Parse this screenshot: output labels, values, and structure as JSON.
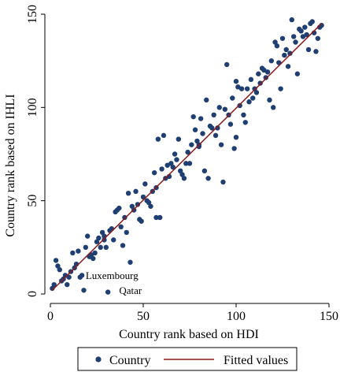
{
  "chart_data": {
    "type": "scatter",
    "xlabel": "Country rank based on HDI",
    "ylabel": "Country rank based on IHLI",
    "xlim": [
      0,
      150
    ],
    "ylim": [
      0,
      150
    ],
    "xticks": [
      0,
      50,
      100,
      150
    ],
    "yticks": [
      0,
      50,
      100,
      150
    ],
    "xtick_labels": [
      "0",
      "50",
      "100",
      "150"
    ],
    "ytick_labels": [
      "0",
      "50",
      "100",
      "150"
    ],
    "grid": false,
    "legend": {
      "placement": "bottom-center",
      "entries": [
        "Country",
        "Fitted values"
      ]
    },
    "colors": {
      "points": "#1f3f73",
      "fitted": "#8b1a1a"
    },
    "series": [
      {
        "name": "Country",
        "points": [
          [
            1,
            3
          ],
          [
            2,
            5
          ],
          [
            3,
            18
          ],
          [
            4,
            15
          ],
          [
            5,
            13
          ],
          [
            6,
            7
          ],
          [
            7,
            8
          ],
          [
            8,
            10
          ],
          [
            9,
            5
          ],
          [
            10,
            9
          ],
          [
            11,
            12
          ],
          [
            12,
            22
          ],
          [
            13,
            14
          ],
          [
            14,
            16
          ],
          [
            15,
            23
          ],
          [
            16,
            9
          ],
          [
            17,
            10
          ],
          [
            18,
            2
          ],
          [
            19,
            25
          ],
          [
            20,
            31
          ],
          [
            21,
            20
          ],
          [
            22,
            21
          ],
          [
            23,
            19
          ],
          [
            24,
            22
          ],
          [
            25,
            28
          ],
          [
            26,
            30
          ],
          [
            27,
            25
          ],
          [
            28,
            33
          ],
          [
            29,
            31
          ],
          [
            30,
            25
          ],
          [
            31,
            1
          ],
          [
            32,
            34
          ],
          [
            33,
            35
          ],
          [
            34,
            29
          ],
          [
            35,
            44
          ],
          [
            36,
            45
          ],
          [
            37,
            46
          ],
          [
            38,
            36
          ],
          [
            39,
            26
          ],
          [
            40,
            41
          ],
          [
            41,
            33
          ],
          [
            42,
            54
          ],
          [
            43,
            17
          ],
          [
            44,
            47
          ],
          [
            45,
            45
          ],
          [
            46,
            55
          ],
          [
            47,
            48
          ],
          [
            48,
            40
          ],
          [
            49,
            39
          ],
          [
            50,
            52
          ],
          [
            51,
            59
          ],
          [
            52,
            50
          ],
          [
            53,
            49
          ],
          [
            54,
            47
          ],
          [
            55,
            55
          ],
          [
            56,
            65
          ],
          [
            57,
            57
          ],
          [
            58,
            83
          ],
          [
            59,
            41
          ],
          [
            60,
            67
          ],
          [
            61,
            85
          ],
          [
            62,
            62
          ],
          [
            63,
            69
          ],
          [
            64,
            63
          ],
          [
            65,
            70
          ],
          [
            66,
            68
          ],
          [
            67,
            75
          ],
          [
            68,
            72
          ],
          [
            69,
            83
          ],
          [
            70,
            66
          ],
          [
            71,
            64
          ],
          [
            72,
            62
          ],
          [
            73,
            70
          ],
          [
            74,
            76
          ],
          [
            75,
            70
          ],
          [
            76,
            80
          ],
          [
            77,
            95
          ],
          [
            78,
            88
          ],
          [
            79,
            82
          ],
          [
            80,
            79
          ],
          [
            81,
            94
          ],
          [
            82,
            86
          ],
          [
            83,
            66
          ],
          [
            84,
            104
          ],
          [
            85,
            62
          ],
          [
            86,
            90
          ],
          [
            87,
            89
          ],
          [
            88,
            96
          ],
          [
            89,
            85
          ],
          [
            90,
            89
          ],
          [
            91,
            100
          ],
          [
            92,
            80
          ],
          [
            93,
            60
          ],
          [
            94,
            99
          ],
          [
            95,
            123
          ],
          [
            96,
            96
          ],
          [
            97,
            91
          ],
          [
            98,
            105
          ],
          [
            99,
            78
          ],
          [
            100,
            84
          ],
          [
            101,
            111
          ],
          [
            102,
            101
          ],
          [
            103,
            110
          ],
          [
            104,
            96
          ],
          [
            105,
            92
          ],
          [
            106,
            110
          ],
          [
            107,
            103
          ],
          [
            108,
            115
          ],
          [
            109,
            105
          ],
          [
            110,
            110
          ],
          [
            111,
            108
          ],
          [
            112,
            118
          ],
          [
            113,
            113
          ],
          [
            114,
            121
          ],
          [
            115,
            120
          ],
          [
            116,
            116
          ],
          [
            117,
            119
          ],
          [
            118,
            104
          ],
          [
            119,
            125
          ],
          [
            120,
            100
          ],
          [
            121,
            135
          ],
          [
            122,
            133
          ],
          [
            123,
            124
          ],
          [
            124,
            110
          ],
          [
            125,
            137
          ],
          [
            126,
            128
          ],
          [
            127,
            131
          ],
          [
            128,
            122
          ],
          [
            129,
            129
          ],
          [
            130,
            147
          ],
          [
            131,
            138
          ],
          [
            132,
            135
          ],
          [
            133,
            118
          ],
          [
            134,
            142
          ],
          [
            135,
            141
          ],
          [
            136,
            138
          ],
          [
            137,
            143
          ],
          [
            138,
            139
          ],
          [
            139,
            131
          ],
          [
            140,
            145
          ],
          [
            141,
            146
          ],
          [
            142,
            140
          ],
          [
            143,
            130
          ],
          [
            144,
            137
          ],
          [
            145,
            143
          ],
          [
            146,
            144
          ],
          [
            29,
            29
          ],
          [
            57,
            41
          ],
          [
            80,
            80
          ],
          [
            100,
            114
          ]
        ]
      },
      {
        "name": "Fitted values",
        "line": [
          [
            1,
            2
          ],
          [
            146,
            145
          ]
        ]
      }
    ],
    "annotations": [
      {
        "text": "Luxembourg",
        "x": 19,
        "y": 8
      },
      {
        "text": "Qatar",
        "x": 37,
        "y": 0
      }
    ]
  }
}
